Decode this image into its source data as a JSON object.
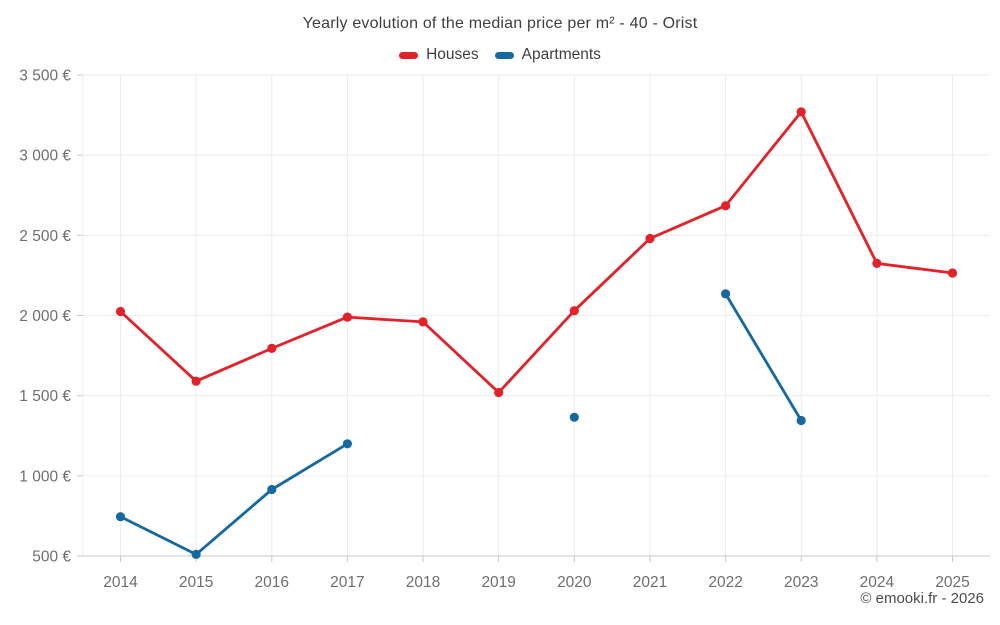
{
  "chart_data": {
    "type": "line",
    "title": "Yearly evolution of the median price per m² - 40 - Orist",
    "footer": "© emooki.fr - 2026",
    "xlabel": "",
    "ylabel": "",
    "legend_position": "top",
    "grid": true,
    "categories": [
      "2014",
      "2015",
      "2016",
      "2017",
      "2018",
      "2019",
      "2020",
      "2021",
      "2022",
      "2023",
      "2024",
      "2025"
    ],
    "series": [
      {
        "name": "Houses",
        "color": "#e22128",
        "values": [
          2025,
          1590,
          1795,
          1990,
          1960,
          1520,
          2030,
          2480,
          2685,
          3270,
          2325,
          2265
        ]
      },
      {
        "name": "Apartments",
        "color": "#1569a0",
        "values": [
          745,
          510,
          915,
          1200,
          null,
          null,
          1365,
          null,
          2135,
          1345,
          null,
          null
        ]
      }
    ],
    "ylim": [
      500,
      3500
    ],
    "yticks": [
      {
        "value": 500,
        "label": "500 €"
      },
      {
        "value": 1000,
        "label": "1 000 €"
      },
      {
        "value": 1500,
        "label": "1 500 €"
      },
      {
        "value": 2000,
        "label": "2 000 €"
      },
      {
        "value": 2500,
        "label": "2 500 €"
      },
      {
        "value": 3000,
        "label": "3 000 €"
      },
      {
        "value": 3500,
        "label": "3 500 €"
      }
    ],
    "colors": {
      "grid": "#ececec",
      "axis": "#c9c9c9",
      "tick": "#c9c9c9",
      "axis_label": "#6e6e6e"
    }
  }
}
